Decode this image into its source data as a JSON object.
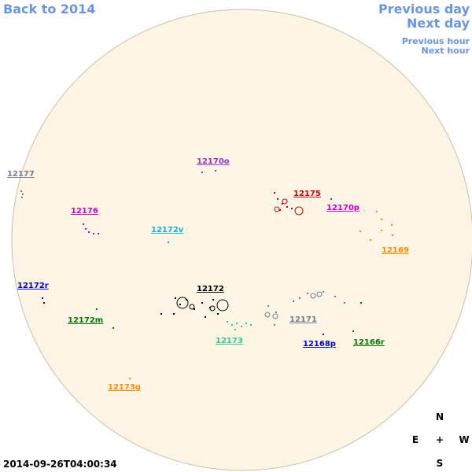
{
  "navigation": {
    "back": "Back to 2014",
    "previous_day": "Previous day",
    "next_day": "Next day",
    "previous_hour": "Previous hour",
    "next_hour": "Next hour"
  },
  "timestamp": "2014-09-26T04:00:34",
  "compass": {
    "north": "N",
    "east": "E",
    "center": "+",
    "west": "W",
    "south": "S"
  },
  "groups": [
    {
      "label": "12177",
      "color": "#708090"
    },
    {
      "label": "12170o",
      "color": "#9932cc"
    },
    {
      "label": "12175",
      "color": "#cc0000"
    },
    {
      "label": "12176",
      "color": "#cc00cc"
    },
    {
      "label": "12170p",
      "color": "#cc00cc"
    },
    {
      "label": "12172v",
      "color": "#1aaee0"
    },
    {
      "label": "12169",
      "color": "#ff8c00"
    },
    {
      "label": "12172r",
      "color": "#0000cc"
    },
    {
      "label": "12172",
      "color": "#000000"
    },
    {
      "label": "12172m",
      "color": "#007700"
    },
    {
      "label": "12171",
      "color": "#708090"
    },
    {
      "label": "12173",
      "color": "#33cc88"
    },
    {
      "label": "12168p",
      "color": "#0000cc"
    },
    {
      "label": "12166r",
      "color": "#007700"
    },
    {
      "label": "12173g",
      "color": "#ff8c00"
    }
  ]
}
